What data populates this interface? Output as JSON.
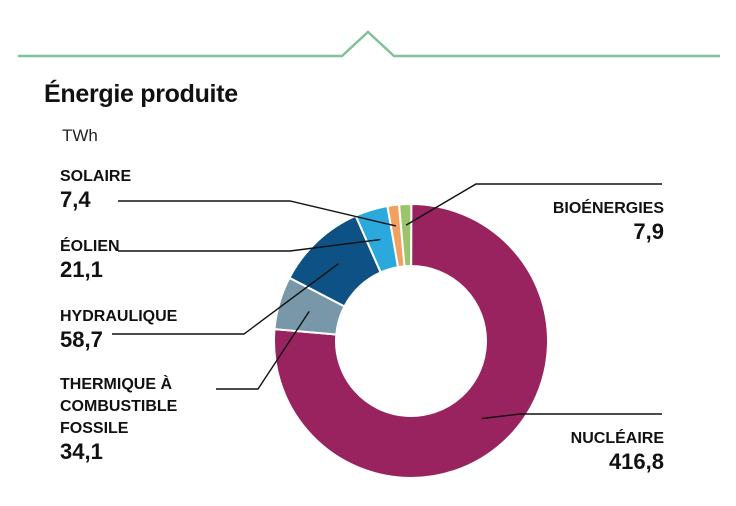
{
  "title": "Énergie produite",
  "unit": "TWh",
  "chart_data": {
    "type": "pie",
    "donut": true,
    "unit": "TWh",
    "slices": [
      {
        "label": "BIOÉNERGIES",
        "value": 7.9,
        "display": "7,9",
        "color": "#9bc46c"
      },
      {
        "label": "NUCLÉAIRE",
        "value": 416.8,
        "display": "416,8",
        "color": "#99235f"
      },
      {
        "label": "THERMIQUE À COMBUSTIBLE FOSSILE",
        "value": 34.1,
        "display": "34,1",
        "color": "#7897a9"
      },
      {
        "label": "HYDRAULIQUE",
        "value": 58.7,
        "display": "58,7",
        "color": "#0e5285"
      },
      {
        "label": "ÉOLIEN",
        "value": 21.1,
        "display": "21,1",
        "color": "#2ba8dc"
      },
      {
        "label": "SOLAIRE",
        "value": 7.4,
        "display": "7,4",
        "color": "#f2a05e"
      }
    ]
  },
  "labels": {
    "solaire": {
      "name": "SOLAIRE",
      "value": "7,4"
    },
    "eolien": {
      "name": "ÉOLIEN",
      "value": "21,1"
    },
    "hydraulique": {
      "name": "HYDRAULIQUE",
      "value": "58,7"
    },
    "thermique": {
      "name": "THERMIQUE À\nCOMBUSTIBLE\nFOSSILE",
      "value": "34,1"
    },
    "bioenergies": {
      "name": "BIOÉNERGIES",
      "value": "7,9"
    },
    "nucleaire": {
      "name": "NUCLÉAIRE",
      "value": "416,8"
    }
  },
  "colors": {
    "accent_line": "#7fc29b",
    "leader": "#111111"
  }
}
